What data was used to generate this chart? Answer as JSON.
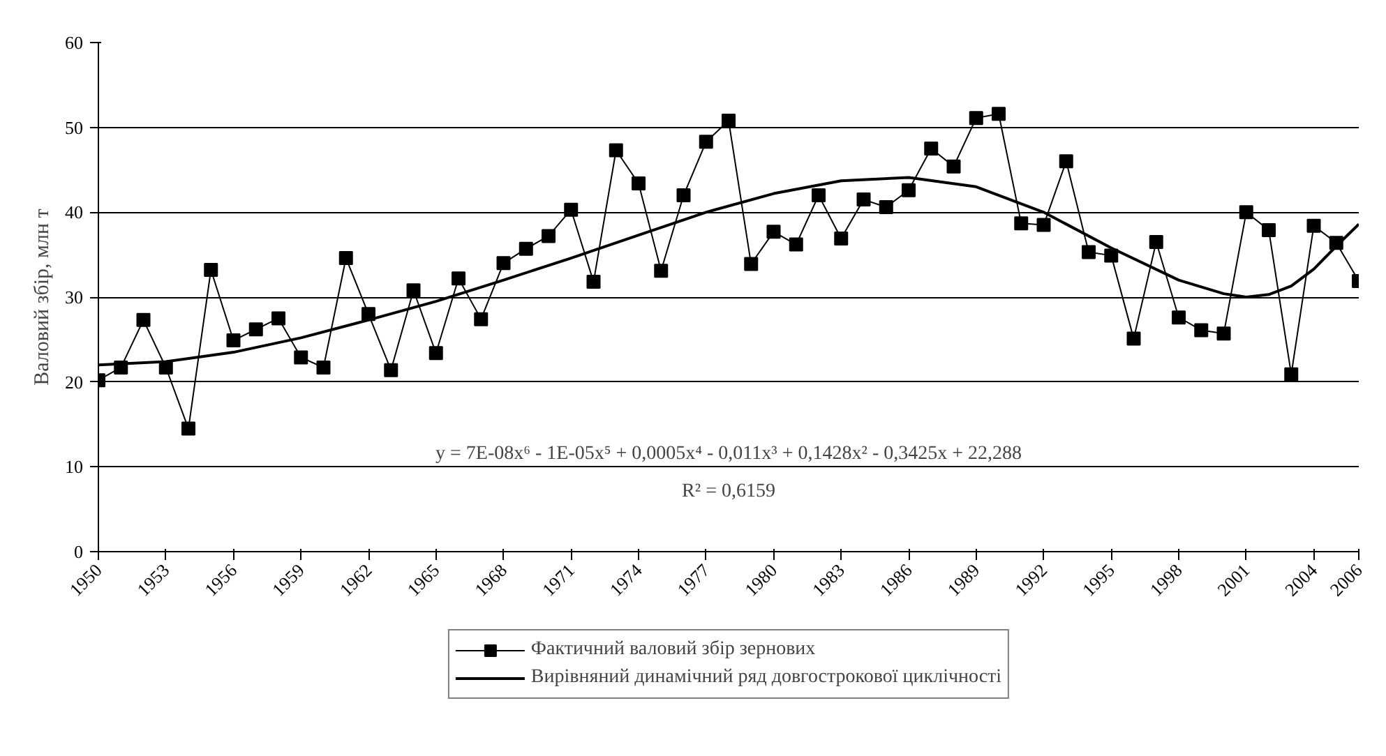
{
  "chart_data": {
    "type": "line",
    "ylabel": "Валовий збір, млн т",
    "x": [
      1950,
      1951,
      1952,
      1953,
      1954,
      1955,
      1956,
      1957,
      1958,
      1959,
      1960,
      1961,
      1962,
      1963,
      1964,
      1965,
      1966,
      1967,
      1968,
      1969,
      1970,
      1971,
      1972,
      1973,
      1974,
      1975,
      1976,
      1977,
      1978,
      1979,
      1980,
      1981,
      1982,
      1983,
      1984,
      1985,
      1986,
      1987,
      1988,
      1989,
      1990,
      1991,
      1992,
      1993,
      1994,
      1995,
      1996,
      1997,
      1998,
      1999,
      2000,
      2001,
      2002,
      2003,
      2004,
      2005,
      2006
    ],
    "series": [
      {
        "name": "Фактичний валовий збір зернових",
        "color": "#000000",
        "marker": "square",
        "line_style": "solid",
        "values": [
          20.2,
          21.7,
          27.3,
          21.7,
          14.5,
          33.2,
          24.9,
          26.2,
          27.5,
          22.9,
          21.7,
          34.6,
          28.0,
          21.4,
          30.8,
          23.4,
          32.2,
          27.4,
          34.0,
          35.7,
          37.2,
          40.3,
          31.8,
          47.3,
          43.4,
          33.1,
          42.0,
          48.3,
          50.8,
          33.9,
          37.7,
          36.2,
          42.0,
          36.9,
          41.5,
          40.6,
          42.6,
          47.5,
          45.4,
          51.1,
          51.6,
          38.7,
          38.5,
          46.0,
          35.3,
          34.9,
          25.1,
          36.5,
          27.6,
          26.1,
          25.7,
          40.0,
          37.9,
          20.9,
          38.4,
          36.4,
          31.9
        ]
      },
      {
        "name": "Вирівняний динамічний ряд довгострокової циклічності",
        "color": "#000000",
        "marker": "none",
        "line_style": "solid",
        "x": [
          1950,
          1953,
          1956,
          1959,
          1962,
          1965,
          1968,
          1971,
          1974,
          1977,
          1980,
          1983,
          1986,
          1989,
          1992,
          1995,
          1998,
          2000,
          2001,
          2002,
          2003,
          2004,
          2005,
          2006
        ],
        "values": [
          22.0,
          22.4,
          23.5,
          25.2,
          27.3,
          29.5,
          32.0,
          34.6,
          37.3,
          40.0,
          42.2,
          43.7,
          44.1,
          43.0,
          40.0,
          35.8,
          32.0,
          30.4,
          30.0,
          30.3,
          31.3,
          33.3,
          36.0,
          38.6
        ]
      }
    ],
    "annotations": [
      "y = 7E-08x⁶ - 1E-05x⁵ + 0,0005x⁴ - 0,011x³ + 0,1428x² - 0,3425x + 22,288",
      "R² = 0,6159"
    ],
    "xlim": [
      1950,
      2006
    ],
    "xticks": [
      1950,
      1953,
      1956,
      1959,
      1962,
      1965,
      1968,
      1971,
      1974,
      1977,
      1980,
      1983,
      1986,
      1989,
      1992,
      1995,
      1998,
      2001,
      2004,
      2006
    ],
    "ylim": [
      0,
      60
    ],
    "yticks": [
      0,
      10,
      20,
      30,
      40,
      50,
      60
    ],
    "grid": "y",
    "legend": "bottom"
  }
}
